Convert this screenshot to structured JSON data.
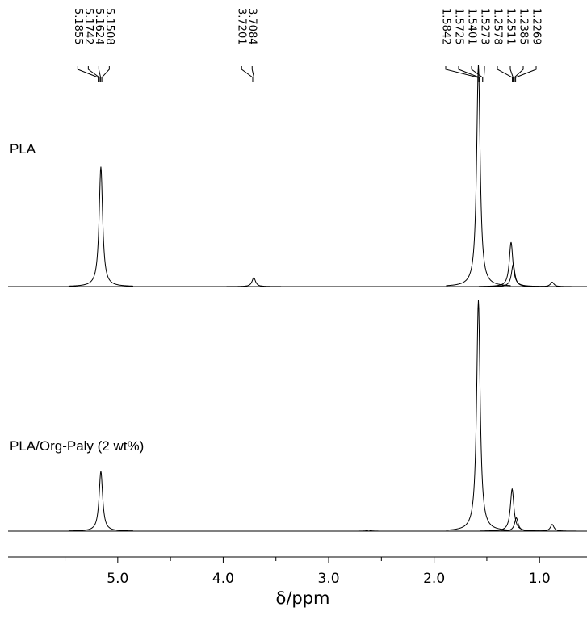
{
  "chart_data": {
    "type": "nmr",
    "xlabel": "δ/ppm",
    "xlim": [
      6.04,
      0.55
    ],
    "xticks": [
      {
        "value": 5,
        "label": "5.0"
      },
      {
        "value": 4,
        "label": "4.0"
      },
      {
        "value": 3,
        "label": "3.0"
      },
      {
        "value": 2,
        "label": "2.0"
      },
      {
        "value": 1,
        "label": "1.0"
      }
    ],
    "xminorticks": [
      5.5,
      4.5,
      3.5,
      2.5,
      1.5
    ],
    "peak_labels": [
      5.1855,
      5.1742,
      5.1624,
      5.1508,
      3.7201,
      3.7084,
      1.5842,
      1.5725,
      1.5401,
      1.5273,
      1.2578,
      1.2511,
      1.2385,
      1.2269
    ],
    "series": [
      {
        "name": "PLA",
        "color": "#000000",
        "x": [
          5.16,
          3.71,
          1.58,
          1.27,
          1.25,
          0.88
        ],
        "values": [
          0.54,
          0.04,
          1.0,
          0.2,
          0.1,
          0.02
        ]
      },
      {
        "name": "PLA/Org-Paly (2 wt%)",
        "color": "#000000",
        "x": [
          5.16,
          2.62,
          1.58,
          1.26,
          1.22,
          0.88
        ],
        "values": [
          0.27,
          0.005,
          1.04,
          0.19,
          0.06,
          0.03
        ]
      }
    ]
  }
}
